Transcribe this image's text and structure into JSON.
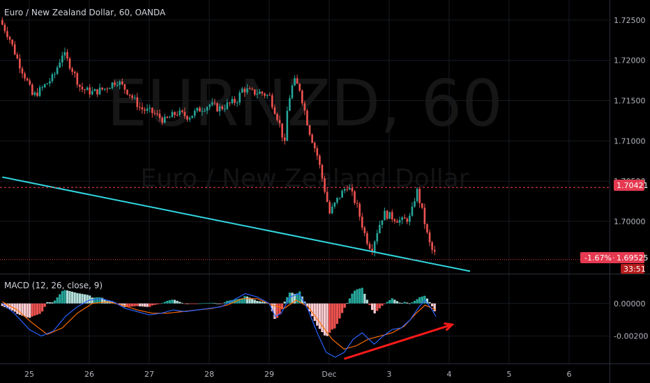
{
  "header": {
    "title": "Euro / New Zealand Dollar, 60, OANDA"
  },
  "watermark": {
    "symbol": "EURNZD, 60",
    "description": "Euro / New Zealand Dollar"
  },
  "colors": {
    "background": "#000000",
    "up": "#26a69a",
    "down": "#ef5350",
    "trendline": "#31d8e0",
    "alert_line": "#e53950",
    "macd_line": "#2962ff",
    "signal_line": "#ff6d00",
    "arrow": "#ff1a1a"
  },
  "price_labels": {
    "alert": "1.70421",
    "change": "-1.67%",
    "last": "1.69525",
    "countdown": "33:51"
  },
  "macd": {
    "label": "MACD (12, 26, close, 9)"
  },
  "chart_data": [
    {
      "type": "candlestick",
      "title": "Euro / New Zealand Dollar, 60, OANDA",
      "ylim": [
        1.6935,
        1.7275
      ],
      "y_ticks": [
        "1.72500",
        "1.72000",
        "1.71500",
        "1.71000",
        "1.70500",
        "1.70000"
      ],
      "x_ticks": [
        "25",
        "26",
        "27",
        "28",
        "29",
        "Dec",
        "3",
        "4",
        "5",
        "6"
      ],
      "x_tick_days": [
        0,
        1,
        2,
        3,
        4,
        5,
        6,
        7,
        8,
        9
      ],
      "price_path": [
        [
          -0.45,
          1.725
        ],
        [
          -0.3,
          1.723
        ],
        [
          -0.15,
          1.72
        ],
        [
          0.0,
          1.7175
        ],
        [
          0.1,
          1.7155
        ],
        [
          0.25,
          1.7165
        ],
        [
          0.45,
          1.718
        ],
        [
          0.6,
          1.721
        ],
        [
          0.75,
          1.719
        ],
        [
          0.9,
          1.7165
        ],
        [
          1.1,
          1.716
        ],
        [
          1.3,
          1.7165
        ],
        [
          1.5,
          1.7175
        ],
        [
          1.7,
          1.716
        ],
        [
          1.9,
          1.714
        ],
        [
          2.1,
          1.7135
        ],
        [
          2.3,
          1.7125
        ],
        [
          2.5,
          1.7135
        ],
        [
          2.7,
          1.713
        ],
        [
          2.9,
          1.714
        ],
        [
          3.05,
          1.7145
        ],
        [
          3.2,
          1.714
        ],
        [
          3.35,
          1.7145
        ],
        [
          3.5,
          1.715
        ],
        [
          3.6,
          1.7165
        ],
        [
          3.75,
          1.716
        ],
        [
          3.9,
          1.716
        ],
        [
          4.05,
          1.7155
        ],
        [
          4.2,
          1.7125
        ],
        [
          4.3,
          1.7095
        ],
        [
          4.35,
          1.7145
        ],
        [
          4.45,
          1.7175
        ],
        [
          4.55,
          1.7165
        ],
        [
          4.7,
          1.7115
        ],
        [
          4.85,
          1.708
        ],
        [
          4.95,
          1.7045
        ],
        [
          5.05,
          1.701
        ],
        [
          5.2,
          1.703
        ],
        [
          5.35,
          1.7045
        ],
        [
          5.5,
          1.702
        ],
        [
          5.65,
          1.698
        ],
        [
          5.75,
          1.6965
        ],
        [
          5.85,
          1.699
        ],
        [
          5.95,
          1.701
        ],
        [
          6.1,
          1.7005
        ],
        [
          6.25,
          1.7
        ],
        [
          6.4,
          1.7005
        ],
        [
          6.5,
          1.704
        ],
        [
          6.6,
          1.701
        ],
        [
          6.7,
          1.6975
        ],
        [
          6.78,
          1.696
        ]
      ],
      "trendline": [
        [
          -0.45,
          1.7055
        ],
        [
          7.35,
          1.6938
        ]
      ],
      "alert_level": 1.70421,
      "last_price": 1.69525
    },
    {
      "type": "histogram+line",
      "title": "MACD (12, 26, close, 9)",
      "ylim": [
        -0.0036,
        0.0017
      ],
      "y_ticks": [
        "0.00000",
        "-0.00200"
      ],
      "y_tick_values": [
        0.0,
        -0.002
      ],
      "series": [
        {
          "name": "MACD",
          "points": [
            [
              -0.45,
              0.0
            ],
            [
              -0.25,
              -0.0006
            ],
            [
              0.0,
              -0.0016
            ],
            [
              0.2,
              -0.002
            ],
            [
              0.4,
              -0.0017
            ],
            [
              0.6,
              -0.0008
            ],
            [
              0.8,
              -0.0002
            ],
            [
              1.0,
              0.0002
            ],
            [
              1.2,
              0.0003
            ],
            [
              1.4,
              0.0001
            ],
            [
              1.6,
              -0.0003
            ],
            [
              1.8,
              -0.0005
            ],
            [
              2.0,
              -0.0007
            ],
            [
              2.2,
              -0.0006
            ],
            [
              2.4,
              -0.0004
            ],
            [
              2.6,
              -0.0005
            ],
            [
              2.8,
              -0.0004
            ],
            [
              3.0,
              -0.0003
            ],
            [
              3.2,
              -0.0002
            ],
            [
              3.4,
              0.0002
            ],
            [
              3.6,
              0.0006
            ],
            [
              3.8,
              0.0004
            ],
            [
              4.0,
              0.0
            ],
            [
              4.1,
              -0.0008
            ],
            [
              4.2,
              -0.0006
            ],
            [
              4.35,
              0.0004
            ],
            [
              4.5,
              0.0006
            ],
            [
              4.65,
              -0.0004
            ],
            [
              4.8,
              -0.0018
            ],
            [
              4.95,
              -0.003
            ],
            [
              5.1,
              -0.0033
            ],
            [
              5.25,
              -0.003
            ],
            [
              5.4,
              -0.0022
            ],
            [
              5.55,
              -0.0018
            ],
            [
              5.75,
              -0.0025
            ],
            [
              5.9,
              -0.002
            ],
            [
              6.05,
              -0.0016
            ],
            [
              6.2,
              -0.0015
            ],
            [
              6.35,
              -0.001
            ],
            [
              6.5,
              -0.0002
            ],
            [
              6.6,
              0.0002
            ],
            [
              6.7,
              -0.0003
            ],
            [
              6.78,
              -0.0008
            ]
          ]
        },
        {
          "name": "Signal",
          "points": [
            [
              -0.45,
              0.0001
            ],
            [
              -0.2,
              -0.0004
            ],
            [
              0.05,
              -0.0012
            ],
            [
              0.3,
              -0.0019
            ],
            [
              0.55,
              -0.0015
            ],
            [
              0.8,
              -0.0006
            ],
            [
              1.05,
              0.0
            ],
            [
              1.3,
              0.0001
            ],
            [
              1.55,
              -0.0001
            ],
            [
              1.8,
              -0.0004
            ],
            [
              2.05,
              -0.0006
            ],
            [
              2.3,
              -0.0006
            ],
            [
              2.55,
              -0.0005
            ],
            [
              2.8,
              -0.0004
            ],
            [
              3.05,
              -0.0003
            ],
            [
              3.3,
              -0.0001
            ],
            [
              3.55,
              0.0003
            ],
            [
              3.8,
              0.0003
            ],
            [
              4.05,
              -0.0001
            ],
            [
              4.25,
              -0.0003
            ],
            [
              4.45,
              0.0002
            ],
            [
              4.65,
              -0.0002
            ],
            [
              4.85,
              -0.0012
            ],
            [
              5.05,
              -0.0022
            ],
            [
              5.25,
              -0.0028
            ],
            [
              5.45,
              -0.0026
            ],
            [
              5.65,
              -0.0022
            ],
            [
              5.85,
              -0.002
            ],
            [
              6.05,
              -0.0018
            ],
            [
              6.25,
              -0.0014
            ],
            [
              6.45,
              -0.0006
            ],
            [
              6.6,
              -0.0001
            ],
            [
              6.78,
              -0.0004
            ]
          ]
        }
      ],
      "arrow": [
        [
          5.25,
          -0.0034
        ],
        [
          7.05,
          -0.0013
        ]
      ]
    }
  ]
}
